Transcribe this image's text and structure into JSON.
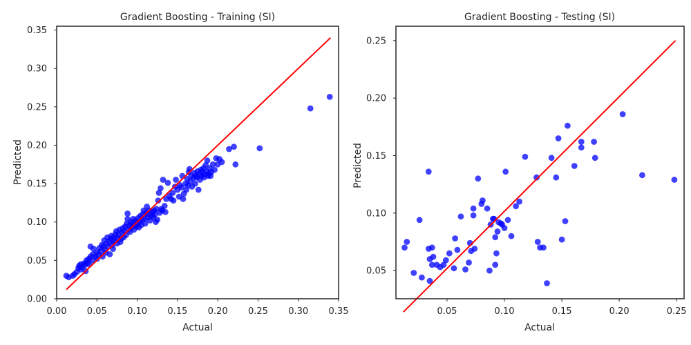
{
  "colors": {
    "points": "#0000ff",
    "line": "#ff0000",
    "frame": "#262626"
  },
  "chart_data": [
    {
      "type": "scatter",
      "title": "Gradient Boosting - Training (SI)",
      "xlabel": "Actual",
      "ylabel": "Predicted",
      "xlim": [
        0.0,
        0.35
      ],
      "ylim": [
        0.0,
        0.355
      ],
      "xticks": [
        "0.00",
        "0.05",
        "0.10",
        "0.15",
        "0.20",
        "0.25",
        "0.30",
        "0.35"
      ],
      "yticks": [
        "0.00",
        "0.05",
        "0.10",
        "0.15",
        "0.20",
        "0.25",
        "0.30",
        "0.35"
      ],
      "grid": false,
      "reference_line": {
        "x": [
          0.012,
          0.34
        ],
        "y": [
          0.012,
          0.34
        ]
      },
      "points": [
        [
          0.012,
          0.03
        ],
        [
          0.015,
          0.028
        ],
        [
          0.02,
          0.03
        ],
        [
          0.022,
          0.032
        ],
        [
          0.025,
          0.035
        ],
        [
          0.027,
          0.04
        ],
        [
          0.028,
          0.043
        ],
        [
          0.03,
          0.038
        ],
        [
          0.03,
          0.045
        ],
        [
          0.032,
          0.041
        ],
        [
          0.034,
          0.046
        ],
        [
          0.035,
          0.044
        ],
        [
          0.036,
          0.036
        ],
        [
          0.037,
          0.05
        ],
        [
          0.038,
          0.047
        ],
        [
          0.04,
          0.045
        ],
        [
          0.04,
          0.052
        ],
        [
          0.042,
          0.055
        ],
        [
          0.042,
          0.068
        ],
        [
          0.044,
          0.05
        ],
        [
          0.045,
          0.058
        ],
        [
          0.046,
          0.065
        ],
        [
          0.048,
          0.055
        ],
        [
          0.05,
          0.06
        ],
        [
          0.05,
          0.052
        ],
        [
          0.052,
          0.058
        ],
        [
          0.053,
          0.066
        ],
        [
          0.055,
          0.062
        ],
        [
          0.056,
          0.07
        ],
        [
          0.057,
          0.055
        ],
        [
          0.058,
          0.068
        ],
        [
          0.059,
          0.076
        ],
        [
          0.06,
          0.064
        ],
        [
          0.061,
          0.06
        ],
        [
          0.062,
          0.072
        ],
        [
          0.063,
          0.08
        ],
        [
          0.064,
          0.068
        ],
        [
          0.065,
          0.075
        ],
        [
          0.066,
          0.058
        ],
        [
          0.067,
          0.078
        ],
        [
          0.068,
          0.082
        ],
        [
          0.069,
          0.07
        ],
        [
          0.07,
          0.074
        ],
        [
          0.07,
          0.065
        ],
        [
          0.071,
          0.08
        ],
        [
          0.072,
          0.076
        ],
        [
          0.073,
          0.084
        ],
        [
          0.074,
          0.088
        ],
        [
          0.075,
          0.072
        ],
        [
          0.076,
          0.079
        ],
        [
          0.077,
          0.083
        ],
        [
          0.078,
          0.09
        ],
        [
          0.079,
          0.074
        ],
        [
          0.08,
          0.078
        ],
        [
          0.081,
          0.086
        ],
        [
          0.082,
          0.092
        ],
        [
          0.083,
          0.08
        ],
        [
          0.084,
          0.088
        ],
        [
          0.085,
          0.094
        ],
        [
          0.086,
          0.083
        ],
        [
          0.087,
          0.098
        ],
        [
          0.088,
          0.104
        ],
        [
          0.088,
          0.111
        ],
        [
          0.089,
          0.09
        ],
        [
          0.09,
          0.095
        ],
        [
          0.091,
          0.087
        ],
        [
          0.092,
          0.1
        ],
        [
          0.093,
          0.093
        ],
        [
          0.094,
          0.098
        ],
        [
          0.095,
          0.104
        ],
        [
          0.096,
          0.09
        ],
        [
          0.097,
          0.096
        ],
        [
          0.098,
          0.102
        ],
        [
          0.099,
          0.094
        ],
        [
          0.1,
          0.099
        ],
        [
          0.101,
          0.105
        ],
        [
          0.102,
          0.093
        ],
        [
          0.103,
          0.1
        ],
        [
          0.104,
          0.108
        ],
        [
          0.105,
          0.096
        ],
        [
          0.106,
          0.103
        ],
        [
          0.107,
          0.11
        ],
        [
          0.108,
          0.115
        ],
        [
          0.109,
          0.104
        ],
        [
          0.11,
          0.098
        ],
        [
          0.111,
          0.112
        ],
        [
          0.112,
          0.12
        ],
        [
          0.113,
          0.106
        ],
        [
          0.114,
          0.11
        ],
        [
          0.115,
          0.115
        ],
        [
          0.116,
          0.102
        ],
        [
          0.118,
          0.108
        ],
        [
          0.119,
          0.113
        ],
        [
          0.12,
          0.106
        ],
        [
          0.121,
          0.115
        ],
        [
          0.122,
          0.11
        ],
        [
          0.123,
          0.1
        ],
        [
          0.124,
          0.117
        ],
        [
          0.125,
          0.103
        ],
        [
          0.126,
          0.128
        ],
        [
          0.127,
          0.138
        ],
        [
          0.128,
          0.112
        ],
        [
          0.129,
          0.144
        ],
        [
          0.13,
          0.117
        ],
        [
          0.131,
          0.115
        ],
        [
          0.132,
          0.155
        ],
        [
          0.134,
          0.121
        ],
        [
          0.135,
          0.113
        ],
        [
          0.136,
          0.13
        ],
        [
          0.138,
          0.151
        ],
        [
          0.14,
          0.134
        ],
        [
          0.142,
          0.13
        ],
        [
          0.144,
          0.138
        ],
        [
          0.145,
          0.128
        ],
        [
          0.147,
          0.146
        ],
        [
          0.148,
          0.155
        ],
        [
          0.15,
          0.142
        ],
        [
          0.152,
          0.133
        ],
        [
          0.153,
          0.148
        ],
        [
          0.155,
          0.145
        ],
        [
          0.156,
          0.16
        ],
        [
          0.157,
          0.13
        ],
        [
          0.158,
          0.137
        ],
        [
          0.16,
          0.15
        ],
        [
          0.161,
          0.142
        ],
        [
          0.162,
          0.156
        ],
        [
          0.163,
          0.148
        ],
        [
          0.164,
          0.165
        ],
        [
          0.165,
          0.169
        ],
        [
          0.166,
          0.153
        ],
        [
          0.167,
          0.16
        ],
        [
          0.168,
          0.146
        ],
        [
          0.17,
          0.157
        ],
        [
          0.171,
          0.164
        ],
        [
          0.172,
          0.15
        ],
        [
          0.173,
          0.16
        ],
        [
          0.174,
          0.158
        ],
        [
          0.175,
          0.166
        ],
        [
          0.176,
          0.142
        ],
        [
          0.177,
          0.162
        ],
        [
          0.178,
          0.155
        ],
        [
          0.179,
          0.168
        ],
        [
          0.18,
          0.16
        ],
        [
          0.181,
          0.165
        ],
        [
          0.182,
          0.17
        ],
        [
          0.183,
          0.158
        ],
        [
          0.184,
          0.162
        ],
        [
          0.185,
          0.174
        ],
        [
          0.186,
          0.166
        ],
        [
          0.187,
          0.18
        ],
        [
          0.188,
          0.16
        ],
        [
          0.189,
          0.163
        ],
        [
          0.19,
          0.17
        ],
        [
          0.191,
          0.16
        ],
        [
          0.192,
          0.165
        ],
        [
          0.194,
          0.175
        ],
        [
          0.196,
          0.168
        ],
        [
          0.198,
          0.183
        ],
        [
          0.2,
          0.175
        ],
        [
          0.202,
          0.182
        ],
        [
          0.205,
          0.178
        ],
        [
          0.214,
          0.195
        ],
        [
          0.22,
          0.198
        ],
        [
          0.222,
          0.175
        ],
        [
          0.252,
          0.196
        ],
        [
          0.315,
          0.248
        ],
        [
          0.339,
          0.263
        ]
      ]
    },
    {
      "type": "scatter",
      "title": "Gradient Boosting - Testing (SI)",
      "xlabel": "Actual",
      "ylabel": "Predicted",
      "xlim": [
        0.0055,
        0.2565
      ],
      "ylim": [
        0.0255,
        0.2625
      ],
      "xticks": [
        "0.05",
        "0.10",
        "0.15",
        "0.20",
        "0.25"
      ],
      "xtick_values": [
        0.05,
        0.1,
        0.15,
        0.2,
        0.25
      ],
      "yticks": [
        "0.05",
        "0.10",
        "0.15",
        "0.20",
        "0.25"
      ],
      "ytick_values": [
        0.05,
        0.1,
        0.15,
        0.2,
        0.25
      ],
      "grid": false,
      "reference_line": {
        "x": [
          0.012,
          0.249
        ],
        "y": [
          0.014,
          0.25
        ]
      },
      "points": [
        [
          0.013,
          0.07
        ],
        [
          0.015,
          0.075
        ],
        [
          0.021,
          0.048
        ],
        [
          0.026,
          0.094
        ],
        [
          0.028,
          0.044
        ],
        [
          0.034,
          0.069
        ],
        [
          0.034,
          0.136
        ],
        [
          0.035,
          0.06
        ],
        [
          0.035,
          0.041
        ],
        [
          0.037,
          0.07
        ],
        [
          0.037,
          0.055
        ],
        [
          0.038,
          0.062
        ],
        [
          0.041,
          0.055
        ],
        [
          0.044,
          0.053
        ],
        [
          0.047,
          0.055
        ],
        [
          0.049,
          0.059
        ],
        [
          0.052,
          0.065
        ],
        [
          0.056,
          0.052
        ],
        [
          0.057,
          0.078
        ],
        [
          0.059,
          0.068
        ],
        [
          0.062,
          0.097
        ],
        [
          0.066,
          0.051
        ],
        [
          0.069,
          0.057
        ],
        [
          0.07,
          0.074
        ],
        [
          0.071,
          0.067
        ],
        [
          0.073,
          0.098
        ],
        [
          0.073,
          0.104
        ],
        [
          0.074,
          0.069
        ],
        [
          0.077,
          0.13
        ],
        [
          0.08,
          0.108
        ],
        [
          0.081,
          0.111
        ],
        [
          0.085,
          0.104
        ],
        [
          0.087,
          0.05
        ],
        [
          0.088,
          0.09
        ],
        [
          0.09,
          0.095
        ],
        [
          0.091,
          0.095
        ],
        [
          0.092,
          0.079
        ],
        [
          0.092,
          0.055
        ],
        [
          0.093,
          0.065
        ],
        [
          0.094,
          0.084
        ],
        [
          0.095,
          0.092
        ],
        [
          0.097,
          0.091
        ],
        [
          0.098,
          0.09
        ],
        [
          0.1,
          0.087
        ],
        [
          0.101,
          0.136
        ],
        [
          0.103,
          0.094
        ],
        [
          0.106,
          0.08
        ],
        [
          0.11,
          0.106
        ],
        [
          0.113,
          0.11
        ],
        [
          0.118,
          0.149
        ],
        [
          0.128,
          0.131
        ],
        [
          0.129,
          0.075
        ],
        [
          0.131,
          0.07
        ],
        [
          0.134,
          0.07
        ],
        [
          0.137,
          0.039
        ],
        [
          0.141,
          0.148
        ],
        [
          0.145,
          0.131
        ],
        [
          0.147,
          0.165
        ],
        [
          0.15,
          0.077
        ],
        [
          0.153,
          0.093
        ],
        [
          0.155,
          0.176
        ],
        [
          0.161,
          0.141
        ],
        [
          0.167,
          0.162
        ],
        [
          0.167,
          0.157
        ],
        [
          0.178,
          0.162
        ],
        [
          0.179,
          0.148
        ],
        [
          0.203,
          0.186
        ],
        [
          0.22,
          0.133
        ],
        [
          0.248,
          0.129
        ]
      ]
    }
  ]
}
